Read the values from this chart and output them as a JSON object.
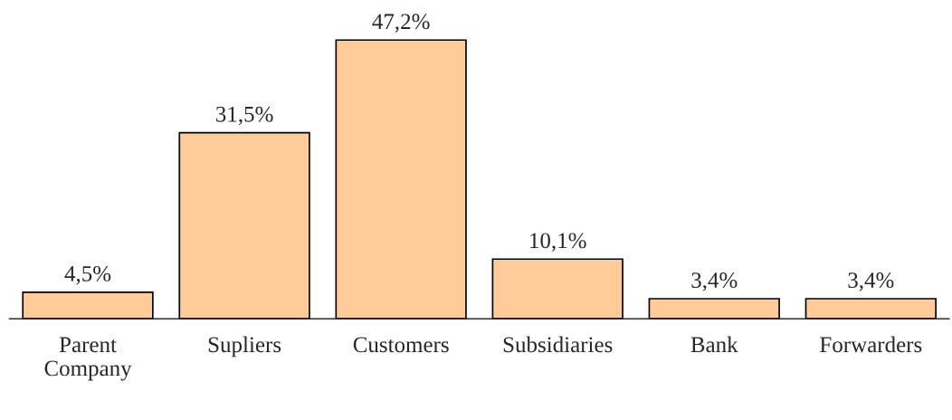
{
  "chart_data": {
    "type": "bar",
    "categories": [
      "Parent\nCompany",
      "Supliers",
      "Customers",
      "Subsidiaries",
      "Bank",
      "Forwarders"
    ],
    "values": [
      4.5,
      31.5,
      47.2,
      10.1,
      3.4,
      3.4
    ],
    "value_labels": [
      "4,5%",
      "31,5%",
      "47,2%",
      "10,1%",
      "3,4%",
      "3,4%"
    ],
    "color": "#ffcc99",
    "tick_labels": "x",
    "grid": false,
    "legend": false
  }
}
